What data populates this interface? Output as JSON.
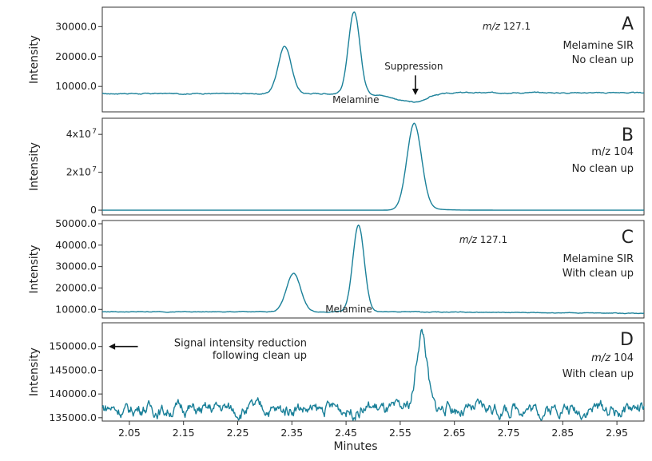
{
  "chart_data": {
    "type": "line",
    "xlabel": "Minutes",
    "xticks": [
      "2.05",
      "2.15",
      "2.25",
      "2.35",
      "2.45",
      "2.55",
      "2.65",
      "2.75",
      "2.85",
      "2.95"
    ],
    "xlim": [
      2.0,
      3.0
    ],
    "line_color": "#1a8099",
    "panels": [
      {
        "letter": "A",
        "ylabel": "Intensity",
        "yticks": [
          {
            "value": 10000,
            "label": "10000.0"
          },
          {
            "value": 20000,
            "label": "20000.0"
          },
          {
            "value": 30000,
            "label": "30000.0"
          }
        ],
        "ylim": [
          1500,
          36500
        ],
        "info_mz": "m/z",
        "info_value": "127.1",
        "lines": [
          "Melamine SIR",
          "No clean up"
        ],
        "annotations": [
          {
            "text": "Melamine",
            "x": 2.468,
            "y": 4500
          },
          {
            "text": "Suppression",
            "x": 2.575,
            "y": 15700
          }
        ],
        "arrow": {
          "x": 2.578,
          "from_y": 13700,
          "to_y": 7100
        },
        "series": {
          "baseline": 7600,
          "noise": 180,
          "peaks": [
            {
              "x": 2.337,
              "height": 15800,
              "width": 0.012
            },
            {
              "x": 2.465,
              "height": 27300,
              "width": 0.0105
            }
          ],
          "dips": [
            {
              "x": 2.565,
              "depth": 2400,
              "width": 0.03
            },
            {
              "x": 2.585,
              "depth": 800,
              "width": 0.012
            }
          ],
          "drift": [
            2.58,
            2.66,
            300
          ]
        }
      },
      {
        "letter": "B",
        "ylabel": "Intensity",
        "yticks": [
          {
            "value": 0,
            "label": "0"
          },
          {
            "value": 20000000,
            "label": "2x10",
            "exp": "7"
          },
          {
            "value": 40000000,
            "label": "4x10",
            "exp": "7"
          }
        ],
        "ylim": [
          -2500000,
          48500000
        ],
        "info_mz": "",
        "info_value": "",
        "lines": [
          "m/z 104",
          "No clean up"
        ],
        "annotations": [],
        "series": {
          "baseline": 0,
          "noise": 0,
          "peaks": [
            {
              "x": 2.576,
              "height": 45900000,
              "width": 0.0135,
              "tail": 0.024
            }
          ]
        }
      },
      {
        "letter": "C",
        "ylabel": "Intensity",
        "yticks": [
          {
            "value": 10000,
            "label": "10000.0"
          },
          {
            "value": 20000,
            "label": "20000.0"
          },
          {
            "value": 30000,
            "label": "30000.0"
          },
          {
            "value": 40000,
            "label": "40000.0"
          },
          {
            "value": 50000,
            "label": "50000.0"
          }
        ],
        "ylim": [
          6000,
          51500
        ],
        "info_mz": "m/z",
        "info_value": "127.1",
        "lines": [
          "Melamine SIR",
          "With clean up"
        ],
        "annotations": [
          {
            "text": "Melamine",
            "x": 2.455,
            "y": 8600
          }
        ],
        "series": {
          "baseline": 8900,
          "noise": 160,
          "peaks": [
            {
              "x": 2.353,
              "height": 18000,
              "width": 0.013
            },
            {
              "x": 2.473,
              "height": 40500,
              "width": 0.0105
            }
          ],
          "drift": [
            2.55,
            3.0,
            -700
          ]
        }
      },
      {
        "letter": "D",
        "ylabel": "Intensity",
        "yticks": [
          {
            "value": 135000,
            "label": "135000.0"
          },
          {
            "value": 140000,
            "label": "140000.0"
          },
          {
            "value": 145000,
            "label": "145000.0"
          },
          {
            "value": 150000,
            "label": "150000.0"
          }
        ],
        "ylim": [
          134300,
          155000
        ],
        "info_mz": "m/z",
        "info_value": "104",
        "lines": [
          "",
          "With clean up"
        ],
        "annotations": [
          {
            "text": "Signal intensity reduction",
            "x": 2.2,
            "y": 150000
          },
          {
            "text": "following clean up",
            "x": 2.2,
            "y": 147400
          }
        ],
        "arrow_left": {
          "y": 150000,
          "from_x": 2.048,
          "to_x": 2.012
        },
        "series": {
          "baseline": 136800,
          "noise": 1500,
          "peaks": [
            {
              "x": 2.59,
              "height": 16600,
              "width": 0.0095
            }
          ]
        }
      }
    ]
  }
}
